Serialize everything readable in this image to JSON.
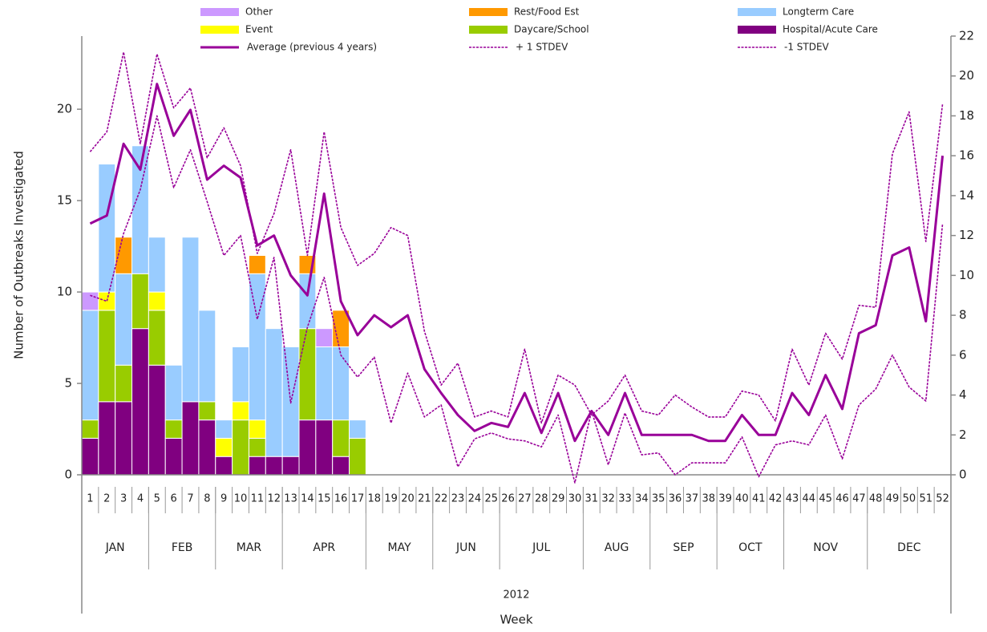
{
  "chart_data": {
    "type": "combo",
    "ylabel": "Number of Outbreaks Investigated",
    "xlabel": "Week",
    "year": "2012",
    "categories": [
      "1",
      "2",
      "3",
      "4",
      "5",
      "6",
      "7",
      "8",
      "9",
      "10",
      "11",
      "12",
      "13",
      "14",
      "15",
      "16",
      "17",
      "18",
      "19",
      "20",
      "21",
      "22",
      "23",
      "24",
      "25",
      "26",
      "27",
      "28",
      "29",
      "30",
      "31",
      "32",
      "33",
      "34",
      "35",
      "36",
      "37",
      "38",
      "39",
      "40",
      "41",
      "42",
      "43",
      "44",
      "45",
      "46",
      "47",
      "48",
      "49",
      "50",
      "51",
      "52"
    ],
    "months": [
      {
        "label": "JAN",
        "weeks": 4
      },
      {
        "label": "FEB",
        "weeks": 4
      },
      {
        "label": "MAR",
        "weeks": 4
      },
      {
        "label": "APR",
        "weeks": 5
      },
      {
        "label": "MAY",
        "weeks": 4
      },
      {
        "label": "JUN",
        "weeks": 4
      },
      {
        "label": "JUL",
        "weeks": 5
      },
      {
        "label": "AUG",
        "weeks": 4
      },
      {
        "label": "SEP",
        "weeks": 4
      },
      {
        "label": "OCT",
        "weeks": 4
      },
      {
        "label": "NOV",
        "weeks": 5
      },
      {
        "label": "DEC",
        "weeks": 5
      }
    ],
    "ylim": [
      0,
      24
    ],
    "yticks": [
      0,
      5,
      10,
      15,
      20
    ],
    "y2lim": [
      0,
      22
    ],
    "y2ticks": [
      0,
      2,
      4,
      6,
      8,
      10,
      12,
      14,
      16,
      18,
      20,
      22
    ],
    "series": [
      {
        "name": "Other",
        "type": "bar",
        "color": "#cc99ff",
        "values": [
          1,
          0,
          0,
          0,
          0,
          0,
          0,
          0,
          0,
          0,
          0,
          0,
          0,
          0,
          1,
          0,
          0,
          null,
          null,
          null,
          null,
          null,
          null,
          null,
          null,
          null,
          null,
          null,
          null,
          null,
          null,
          null,
          null,
          null,
          null,
          null,
          null,
          null,
          null,
          null,
          null,
          null,
          null,
          null,
          null,
          null,
          null,
          null,
          null,
          null,
          null,
          null
        ]
      },
      {
        "name": "Rest/Food Est",
        "type": "bar",
        "color": "#ff9900",
        "values": [
          0,
          0,
          2,
          0,
          0,
          0,
          0,
          0,
          0,
          0,
          1,
          0,
          0,
          1,
          0,
          2,
          0,
          null,
          null,
          null,
          null,
          null,
          null,
          null,
          null,
          null,
          null,
          null,
          null,
          null,
          null,
          null,
          null,
          null,
          null,
          null,
          null,
          null,
          null,
          null,
          null,
          null,
          null,
          null,
          null,
          null,
          null,
          null,
          null,
          null,
          null,
          null
        ]
      },
      {
        "name": "Longterm Care",
        "type": "bar",
        "color": "#99ccff",
        "values": [
          6,
          7,
          5,
          7,
          3,
          3,
          9,
          5,
          1,
          3,
          8,
          7,
          6,
          3,
          4,
          4,
          1,
          null,
          null,
          null,
          null,
          null,
          null,
          null,
          null,
          null,
          null,
          null,
          null,
          null,
          null,
          null,
          null,
          null,
          null,
          null,
          null,
          null,
          null,
          null,
          null,
          null,
          null,
          null,
          null,
          null,
          null,
          null,
          null,
          null,
          null,
          null
        ]
      },
      {
        "name": "Event",
        "type": "bar",
        "color": "#ffff00",
        "values": [
          0,
          1,
          0,
          0,
          1,
          0,
          0,
          0,
          1,
          1,
          1,
          0,
          0,
          0,
          0,
          0,
          0,
          null,
          null,
          null,
          null,
          null,
          null,
          null,
          null,
          null,
          null,
          null,
          null,
          null,
          null,
          null,
          null,
          null,
          null,
          null,
          null,
          null,
          null,
          null,
          null,
          null,
          null,
          null,
          null,
          null,
          null,
          null,
          null,
          null,
          null,
          null
        ]
      },
      {
        "name": "Daycare/School",
        "type": "bar",
        "color": "#99cc00",
        "values": [
          1,
          5,
          2,
          3,
          3,
          1,
          0,
          1,
          0,
          3,
          1,
          0,
          0,
          5,
          0,
          2,
          2,
          null,
          null,
          null,
          null,
          null,
          null,
          null,
          null,
          null,
          null,
          null,
          null,
          null,
          null,
          null,
          null,
          null,
          null,
          null,
          null,
          null,
          null,
          null,
          null,
          null,
          null,
          null,
          null,
          null,
          null,
          null,
          null,
          null,
          null,
          null
        ]
      },
      {
        "name": "Hospital/Acute Care",
        "type": "bar",
        "color": "#800080",
        "values": [
          2,
          4,
          4,
          8,
          6,
          2,
          4,
          3,
          1,
          0,
          1,
          1,
          1,
          3,
          3,
          1,
          0,
          null,
          null,
          null,
          null,
          null,
          null,
          null,
          null,
          null,
          null,
          null,
          null,
          null,
          null,
          null,
          null,
          null,
          null,
          null,
          null,
          null,
          null,
          null,
          null,
          null,
          null,
          null,
          null,
          null,
          null,
          null,
          null,
          null,
          null,
          null
        ]
      },
      {
        "name": "Average (previous 4 years)",
        "type": "line",
        "axis": "y2",
        "dashed": false,
        "color": "#990099",
        "values": [
          12.6,
          13.0,
          16.6,
          15.3,
          19.6,
          17.0,
          18.3,
          14.8,
          15.5,
          14.9,
          11.5,
          12.0,
          10.0,
          9.0,
          14.1,
          8.7,
          7.0,
          8.0,
          7.4,
          8.0,
          5.3,
          4.1,
          3.0,
          2.2,
          2.6,
          2.4,
          4.1,
          2.1,
          4.1,
          1.7,
          3.2,
          2.0,
          4.1,
          2.0,
          2.0,
          2.0,
          2.0,
          1.7,
          1.7,
          3.0,
          2.0,
          2.0,
          4.1,
          3.0,
          5.0,
          3.3,
          7.1,
          7.5,
          11.0,
          11.4,
          7.7,
          16.0
        ]
      },
      {
        "name": "+ 1 STDEV",
        "type": "line",
        "axis": "y2",
        "dashed": true,
        "color": "#990099",
        "values": [
          16.2,
          17.2,
          21.2,
          16.6,
          21.1,
          18.4,
          19.4,
          15.9,
          17.4,
          15.5,
          11.1,
          13.1,
          16.3,
          11.0,
          17.2,
          12.4,
          10.5,
          11.1,
          12.4,
          12.0,
          7.2,
          4.5,
          5.6,
          2.9,
          3.2,
          2.9,
          6.3,
          2.6,
          5.0,
          4.5,
          3.0,
          3.7,
          5.0,
          3.2,
          3.0,
          4.0,
          3.4,
          2.9,
          2.9,
          4.2,
          4.0,
          2.7,
          6.3,
          4.5,
          7.1,
          5.8,
          8.5,
          8.4,
          16.1,
          18.2,
          11.7,
          18.6
        ]
      },
      {
        "name": "-1 STDEV",
        "type": "line",
        "axis": "y2",
        "dashed": true,
        "color": "#990099",
        "values": [
          9.0,
          8.7,
          12.1,
          14.3,
          18.0,
          14.4,
          16.3,
          13.7,
          11.0,
          12.0,
          7.8,
          10.9,
          3.6,
          7.4,
          9.9,
          6.0,
          4.9,
          5.9,
          2.6,
          5.1,
          2.9,
          3.5,
          0.4,
          1.8,
          2.1,
          1.8,
          1.7,
          1.4,
          3.0,
          -0.4,
          3.2,
          0.5,
          3.1,
          1.0,
          1.1,
          0.0,
          0.6,
          0.6,
          0.6,
          1.9,
          -0.1,
          1.5,
          1.7,
          1.5,
          3.0,
          0.8,
          3.5,
          4.3,
          6.0,
          4.4,
          3.7,
          12.6
        ]
      }
    ]
  }
}
